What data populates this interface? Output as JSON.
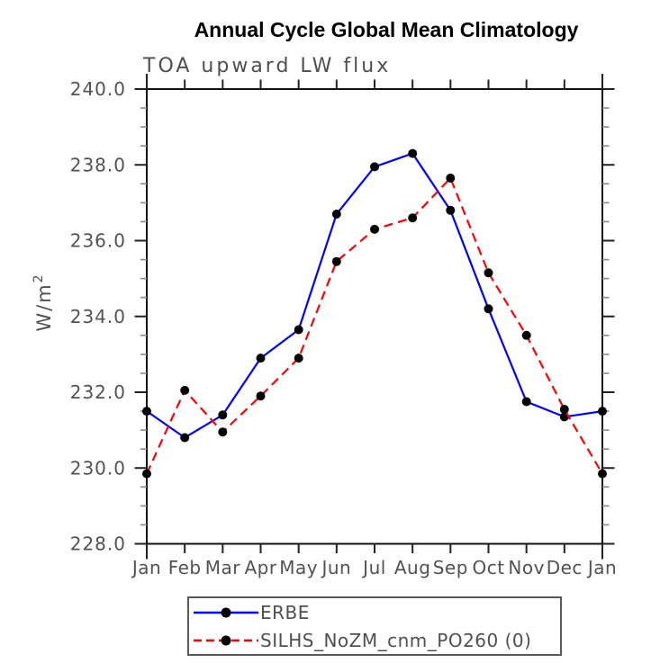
{
  "title": "Annual Cycle Global Mean Climatology",
  "subtitle": "TOA upward LW flux",
  "ylabel_base": "W/m",
  "ylabel_exp": "2",
  "chart_data": {
    "type": "line",
    "x_categories": [
      "Jan",
      "Feb",
      "Mar",
      "Apr",
      "May",
      "Jun",
      "Jul",
      "Aug",
      "Sep",
      "Oct",
      "Nov",
      "Dec",
      "Jan"
    ],
    "series": [
      {
        "name": "ERBE",
        "color": "#0000ff",
        "line_style": "solid",
        "marker": "filled-circle",
        "marker_color": "#000000",
        "values": [
          231.5,
          230.8,
          231.4,
          232.9,
          233.65,
          236.7,
          237.95,
          238.3,
          236.8,
          234.2,
          231.75,
          231.35,
          231.5
        ]
      },
      {
        "name": "SILHS_NoZM_cnm_PO260 (0)",
        "color": "#ff0000",
        "line_style": "dashed",
        "marker": "filled-circle",
        "marker_color": "#000000",
        "values": [
          229.85,
          232.05,
          230.95,
          231.9,
          232.9,
          235.45,
          236.3,
          236.6,
          237.65,
          235.15,
          233.5,
          231.55,
          229.85
        ]
      }
    ],
    "ylim": [
      228.0,
      240.0
    ],
    "ytick_labels": [
      "240.0",
      "238.0",
      "236.0",
      "234.0",
      "232.0",
      "230.0",
      "228.0"
    ],
    "ytick_interval": 2.0,
    "yminor_interval": 0.5,
    "grid": "off",
    "legend_position": "bottom-center"
  }
}
